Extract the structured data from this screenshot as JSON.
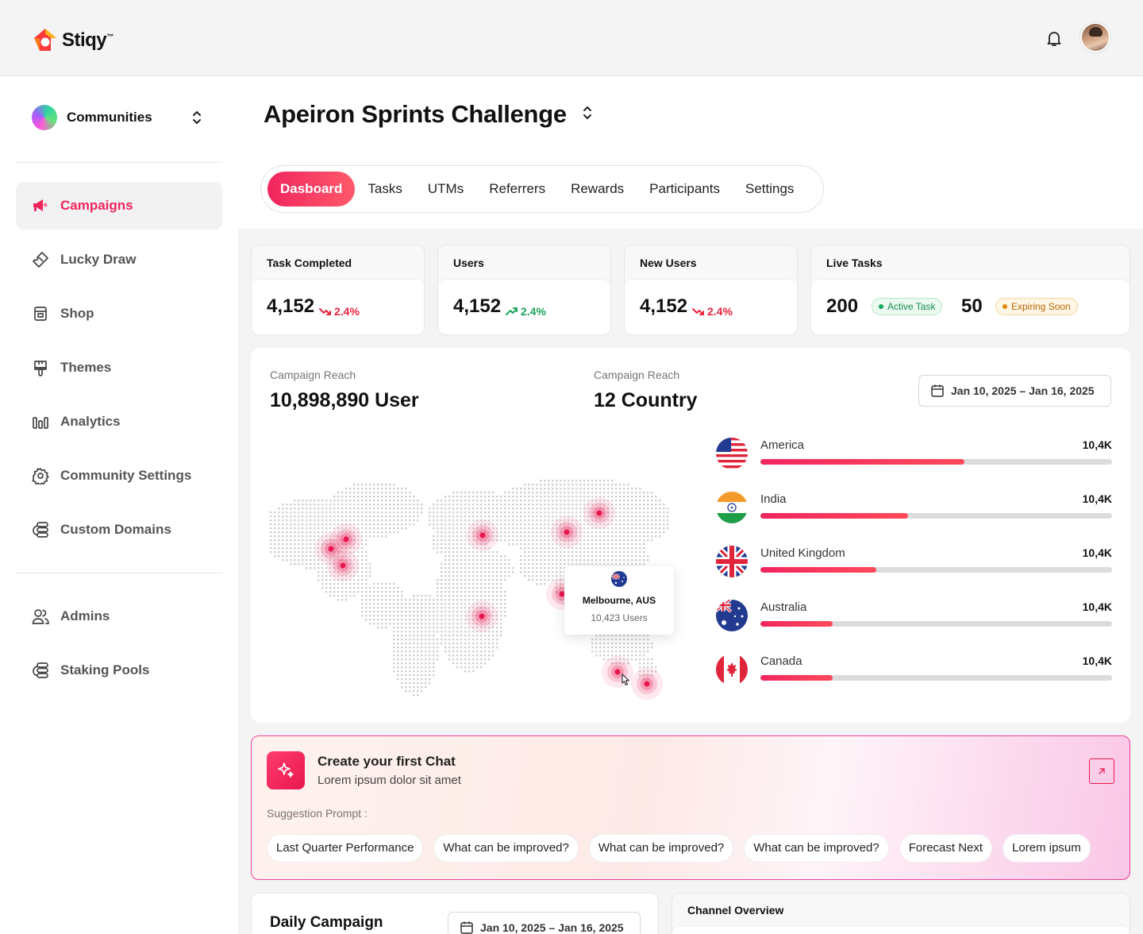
{
  "brand": {
    "name": "Stiqy",
    "tm": "™"
  },
  "sidebar": {
    "community_label": "Communities",
    "items": [
      {
        "label": "Campaigns",
        "icon": "megaphone-icon",
        "active": true
      },
      {
        "label": "Lucky Draw",
        "icon": "ticket-icon"
      },
      {
        "label": "Shop",
        "icon": "shop-icon"
      },
      {
        "label": "Themes",
        "icon": "paint-brush-icon"
      },
      {
        "label": "Analytics",
        "icon": "bar-chart-icon"
      },
      {
        "label": "Community Settings",
        "icon": "gear-icon"
      },
      {
        "label": "Custom Domains",
        "icon": "database-icon"
      },
      {
        "label": "Admins",
        "icon": "users-icon"
      },
      {
        "label": "Staking Pools",
        "icon": "database-icon"
      }
    ]
  },
  "page": {
    "title": "Apeiron Sprints Challenge",
    "tabs": [
      "Dasboard",
      "Tasks",
      "UTMs",
      "Referrers",
      "Rewards",
      "Participants",
      "Settings"
    ]
  },
  "stats": [
    {
      "label": "Task Completed",
      "value": "4,152",
      "trend": "2.4%",
      "direction": "down"
    },
    {
      "label": "Users",
      "value": "4,152",
      "trend": "2.4%",
      "direction": "up"
    },
    {
      "label": "New Users",
      "value": "4,152",
      "trend": "2.4%",
      "direction": "down"
    },
    {
      "label": "Live Tasks",
      "value": "200",
      "badge": "Active Task",
      "value2": "50",
      "badge2": "Expiring Soon"
    }
  ],
  "reach": {
    "users_label": "Campaign Reach",
    "users_value": "10,898,890 User",
    "country_label": "Campaign Reach",
    "country_value": "12 Country",
    "date_range": "Jan 10, 2025 – Jan 16, 2025",
    "tooltip": {
      "city": "Melbourne, AUS",
      "users": "10,423 Users"
    },
    "countries": [
      {
        "name": "America",
        "value": "10,4K",
        "fill": 0.58,
        "flag": "us-flag-icon"
      },
      {
        "name": "India",
        "value": "10,4K",
        "fill": 0.42,
        "flag": "india-flag-icon"
      },
      {
        "name": "United Kingdom",
        "value": "10,4K",
        "fill": 0.33,
        "flag": "uk-flag-icon"
      },
      {
        "name": "Australia",
        "value": "10,4K",
        "fill": 0.205,
        "flag": "australia-flag-icon"
      },
      {
        "name": "Canada",
        "value": "10,4K",
        "fill": 0.205,
        "flag": "canada-flag-icon"
      }
    ]
  },
  "chat": {
    "title": "Create your first Chat",
    "subtitle": "Lorem ipsum dolor sit amet",
    "suggestion_label": "Suggestion Prompt :",
    "suggestions": [
      "Last Quarter Performance",
      "What can be improved?",
      "What can be improved?",
      "What can be improved?",
      "Forecast Next",
      "Lorem ipsum"
    ]
  },
  "daily": {
    "title": "Daily Campaign",
    "date_range": "Jan 10, 2025 – Jan 16, 2025"
  },
  "channel": {
    "title": "Channel Overview"
  },
  "colors": {
    "accent": "#f0255e",
    "up": "#1aa55a",
    "down": "#e8253f",
    "track": "#dcdcdc"
  }
}
